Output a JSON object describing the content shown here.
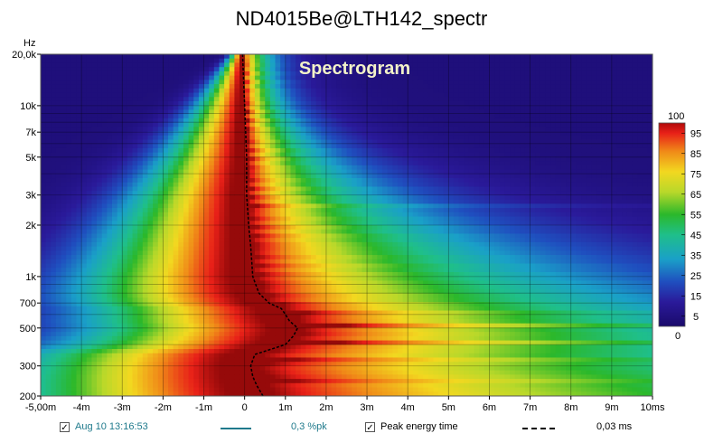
{
  "chart_data": {
    "type": "heatmap",
    "title": "ND4015Be@LTH142_spectr",
    "annotation": "Spectrogram",
    "x_unit": "ms",
    "y_unit": "Hz",
    "xlim": [
      -5.0,
      10.0
    ],
    "ylim": [
      200,
      20000
    ],
    "y_scale": "log",
    "x_ticks": [
      -5,
      -4,
      -3,
      -2,
      -1,
      0,
      1,
      2,
      3,
      4,
      5,
      6,
      7,
      8,
      9,
      10
    ],
    "x_tick_labels": [
      "-5,00m",
      "-4m",
      "-3m",
      "-2m",
      "-1m",
      "0",
      "1m",
      "2m",
      "3m",
      "4m",
      "5m",
      "6m",
      "7m",
      "8m",
      "9m",
      "10ms"
    ],
    "y_ticks": [
      20000,
      10000,
      7000,
      5000,
      3000,
      2000,
      1000,
      700,
      500,
      300,
      200
    ],
    "y_tick_labels": [
      "20,0k",
      "10k",
      "7k",
      "5k",
      "3k",
      "2k",
      "1k",
      "700",
      "500",
      "300",
      "200"
    ],
    "colorbar": {
      "min": 0,
      "max": 100,
      "min_label": "0",
      "max_label": "100",
      "ticks": [
        95,
        85,
        75,
        65,
        55,
        45,
        35,
        25,
        15,
        5
      ],
      "tick_labels": [
        "95",
        "85",
        "75",
        "65",
        "55",
        "45",
        "35",
        "25",
        "15",
        "5"
      ]
    },
    "peak_energy_time": {
      "name": "Peak energy time",
      "frequency": [
        200,
        230,
        260,
        300,
        350,
        400,
        450,
        500,
        550,
        600,
        650,
        700,
        800,
        1000,
        1500,
        2000,
        3000,
        5000,
        10000,
        20000
      ],
      "time_ms": [
        0.45,
        0.3,
        0.2,
        0.15,
        0.25,
        1.0,
        1.2,
        1.3,
        1.1,
        1.0,
        0.9,
        0.6,
        0.35,
        0.2,
        0.15,
        0.1,
        0.05,
        0.05,
        0.0,
        -0.05
      ]
    },
    "grid": true
  },
  "legend": {
    "item1_label": "Aug 10 13:16:53",
    "item1_value": "0,3 %pk",
    "item2_label": "Peak energy time",
    "item2_value": "0,03 ms",
    "check_mark": "✓"
  },
  "colors": {
    "series1": "#1f7a8c",
    "peak_line": "#000000",
    "item1_text": "#1f7a8c"
  }
}
